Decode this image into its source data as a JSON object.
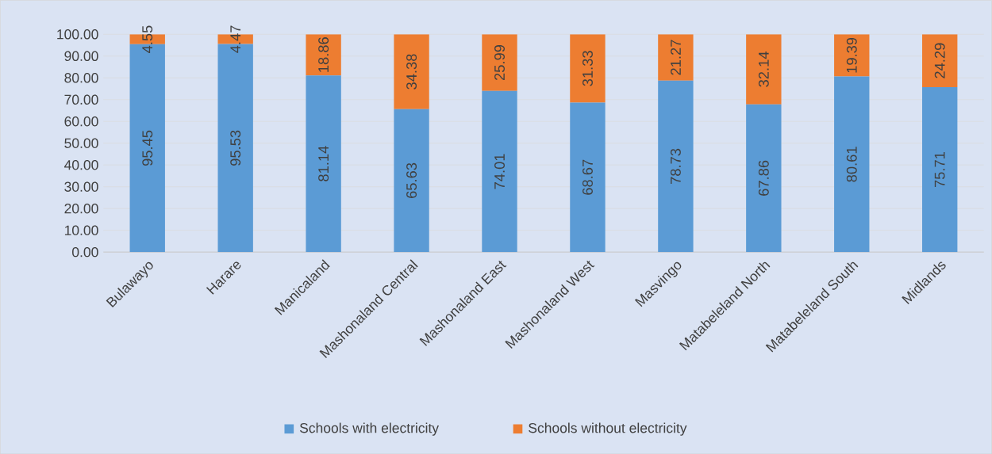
{
  "chart_data": {
    "type": "bar",
    "stacked": true,
    "categories": [
      "Bulawayo",
      "Harare",
      "Manicaland",
      "Mashonaland Central",
      "Mashonaland East",
      "Mashonaland West",
      "Masvingo",
      "Matabeleland North",
      "Matabeleland South",
      "Midlands"
    ],
    "series": [
      {
        "name": "Schools with electricity",
        "color": "#5b9bd5",
        "values": [
          95.45,
          95.53,
          81.14,
          65.63,
          74.01,
          68.67,
          78.73,
          67.86,
          80.61,
          75.71
        ]
      },
      {
        "name": "Schools without electricity",
        "color": "#ed7d31",
        "values": [
          4.55,
          4.47,
          18.86,
          34.38,
          25.99,
          31.33,
          21.27,
          32.14,
          19.39,
          24.29
        ]
      }
    ],
    "ylim": [
      0,
      100
    ],
    "yticks": [
      {
        "value": 0,
        "label": "0.00"
      },
      {
        "value": 10,
        "label": "10.00"
      },
      {
        "value": 20,
        "label": "20.00"
      },
      {
        "value": 30,
        "label": "30.00"
      },
      {
        "value": 40,
        "label": "40.00"
      },
      {
        "value": 50,
        "label": "50.00"
      },
      {
        "value": 60,
        "label": "60.00"
      },
      {
        "value": 70,
        "label": "70.00"
      },
      {
        "value": 80,
        "label": "80.00"
      },
      {
        "value": 90,
        "label": "90.00"
      },
      {
        "value": 100,
        "label": "100.00"
      }
    ],
    "grid": "y",
    "legend": "bottom",
    "data_labels": true
  }
}
